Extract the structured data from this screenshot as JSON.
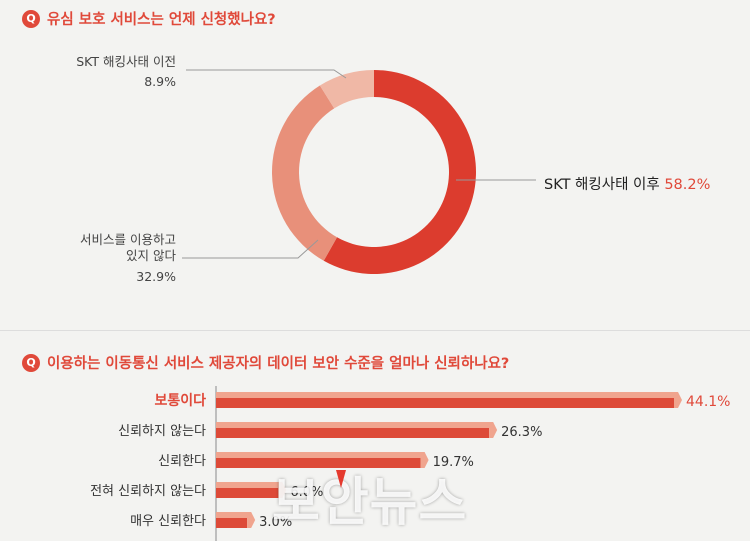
{
  "q1": {
    "badge": "Q",
    "title": "유심 보호 서비스는 언제 신청했나요?"
  },
  "q2": {
    "badge": "Q",
    "title": "이용하는 이동통신 서비스 제공자의 데이터 보안 수준을 얼마나 신뢰하나요?"
  },
  "watermark": "보안뉴스",
  "chart_data": [
    {
      "type": "pie",
      "title": "유심 보호 서비스는 언제 신청했나요?",
      "categories": [
        "SKT 해킹사태 이후",
        "서비스를 이용하고 있지 않다",
        "SKT 해킹사태 이전"
      ],
      "labels_lines": [
        [
          "SKT 해킹사태 이후"
        ],
        [
          "서비스를 이용하고",
          "있지 않다"
        ],
        [
          "SKT 해킹사태 이전"
        ]
      ],
      "values": [
        58.2,
        32.9,
        8.9
      ],
      "value_labels": [
        "58.2%",
        "32.9%",
        "8.9%"
      ],
      "colors": [
        "#dc3c2e",
        "#e8907a",
        "#f0b8a6"
      ]
    },
    {
      "type": "bar",
      "orientation": "horizontal",
      "title": "이용하는 이동통신 서비스 제공자의 데이터 보안 수준을 얼마나 신뢰하나요?",
      "categories": [
        "보통이다",
        "신뢰하지 않는다",
        "신뢰한다",
        "전혀 신뢰하지 않는다",
        "매우 신뢰한다"
      ],
      "values": [
        44.1,
        26.3,
        19.7,
        6.0,
        3.0
      ],
      "value_labels": [
        "44.1%",
        "26.3%",
        "19.7%",
        "6.0%",
        "3.0%"
      ],
      "highlight_index": 0,
      "colors": {
        "bar": "#dd4a38",
        "bar_top": "#f0a48e",
        "highlight_text": "#e0493a",
        "text": "#333333"
      }
    }
  ]
}
